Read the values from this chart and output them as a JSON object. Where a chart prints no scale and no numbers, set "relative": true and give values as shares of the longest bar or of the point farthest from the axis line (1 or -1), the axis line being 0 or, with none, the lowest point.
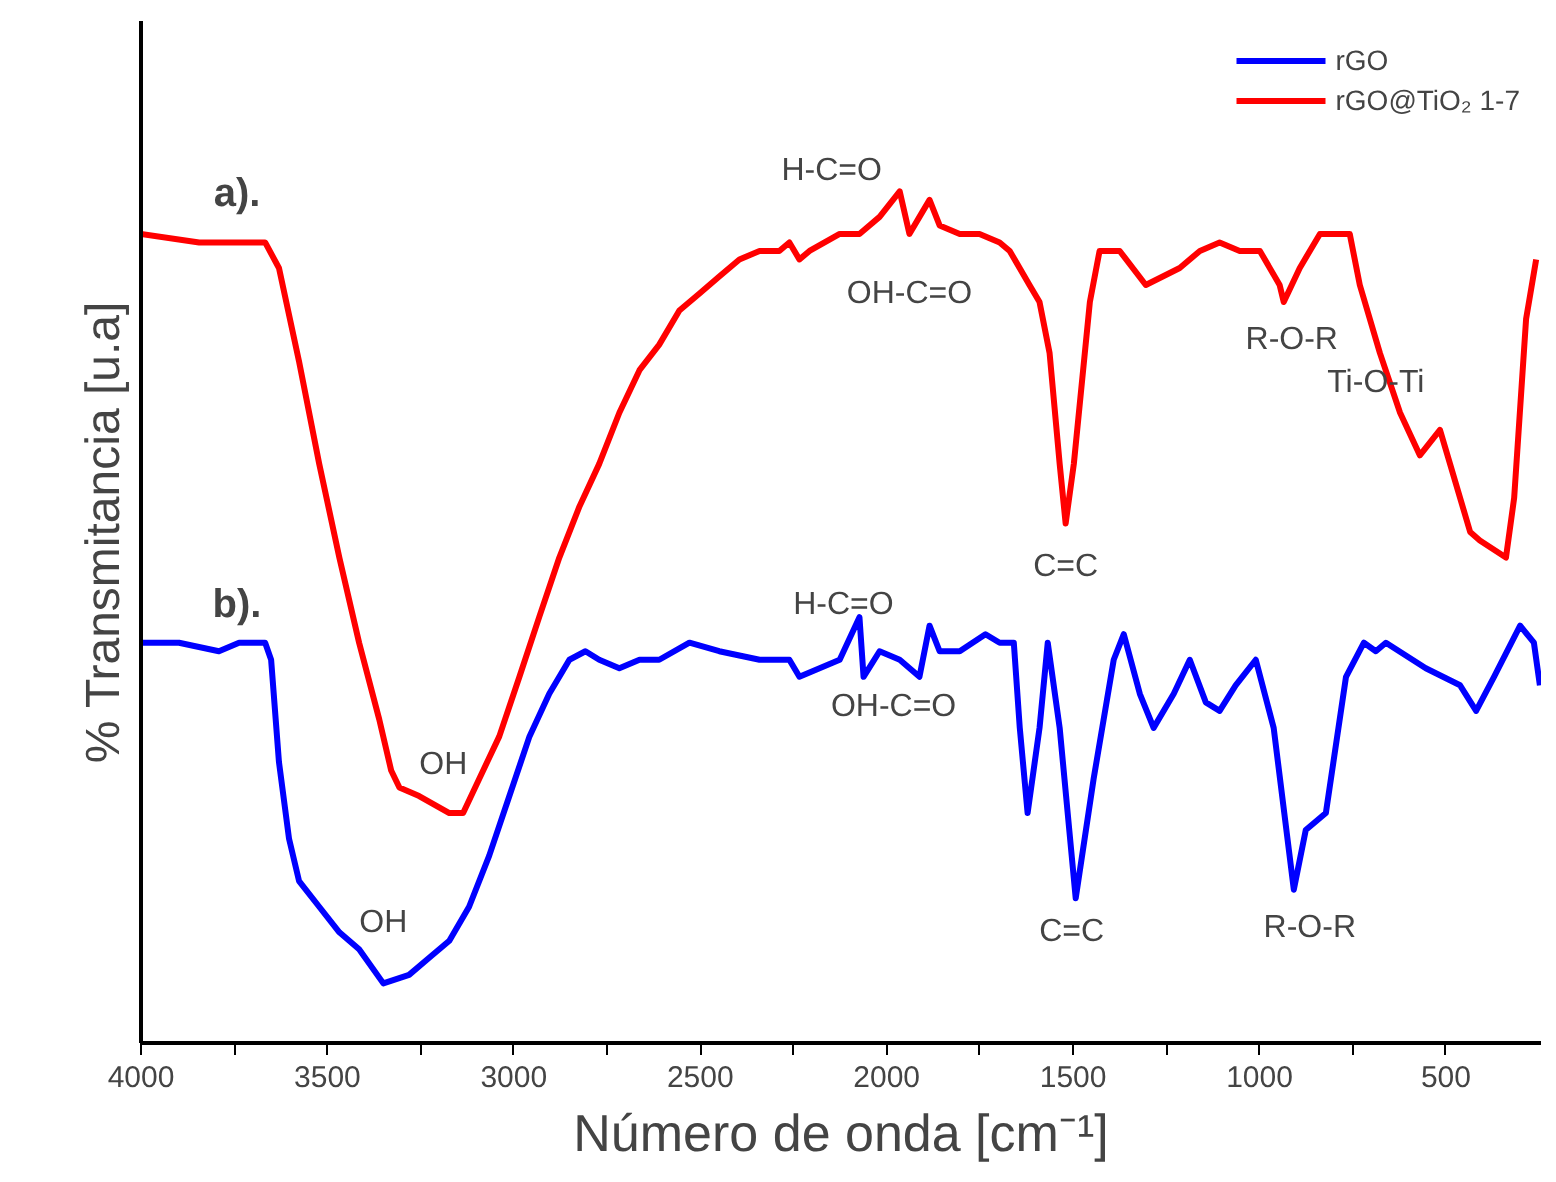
{
  "chart_data": {
    "type": "line",
    "xlabel": "Número de onda [cm⁻¹]",
    "ylabel": "% Transmitancia [u.a]",
    "relative": true,
    "grid": false,
    "legend": "top right",
    "marker": "none",
    "line_style": "solid",
    "xlim": [
      4000,
      245
    ],
    "xticks": [
      4000,
      {
        "value": 3750,
        "label": null
      },
      3500,
      {
        "value": 3250,
        "label": null
      },
      3000,
      {
        "value": 2750,
        "label": null
      },
      2500,
      {
        "value": 2250,
        "label": null
      },
      2000,
      {
        "value": 1750,
        "label": null
      },
      1500,
      {
        "value": 1250,
        "label": null
      },
      1000,
      {
        "value": 750,
        "label": null
      },
      500
    ],
    "series": [
      {
        "name": "rGO",
        "color": "#0000ff",
        "x": [
          4000,
          3898,
          3791,
          3737,
          3667,
          3651,
          3630,
          3603,
          3576,
          3522,
          3468,
          3415,
          3350,
          3281,
          3227,
          3173,
          3120,
          3066,
          3012,
          2958,
          2905,
          2851,
          2808,
          2771,
          2717,
          2663,
          2610,
          2529,
          2449,
          2341,
          2261,
          2234,
          2180,
          2126,
          2073,
          2062,
          2019,
          1965,
          1912,
          1885,
          1858,
          1804,
          1735,
          1697,
          1659,
          1643,
          1622,
          1590,
          1568,
          1536,
          1493,
          1445,
          1391,
          1364,
          1321,
          1284,
          1230,
          1187,
          1144,
          1107,
          1064,
          1010,
          962,
          908,
          876,
          822,
          768,
          720,
          688,
          661,
          554,
          462,
          419,
          371,
          301,
          264,
          248
        ],
        "values": [
          0.47,
          0.47,
          0.46,
          0.47,
          0.47,
          0.45,
          0.33,
          0.24,
          0.19,
          0.16,
          0.13,
          0.11,
          0.07,
          0.08,
          0.1,
          0.12,
          0.16,
          0.22,
          0.29,
          0.36,
          0.41,
          0.45,
          0.46,
          0.45,
          0.44,
          0.45,
          0.45,
          0.47,
          0.46,
          0.45,
          0.45,
          0.43,
          0.44,
          0.45,
          0.5,
          0.43,
          0.46,
          0.45,
          0.43,
          0.49,
          0.46,
          0.46,
          0.48,
          0.47,
          0.47,
          0.37,
          0.27,
          0.37,
          0.47,
          0.37,
          0.17,
          0.31,
          0.45,
          0.48,
          0.41,
          0.37,
          0.41,
          0.45,
          0.4,
          0.39,
          0.42,
          0.45,
          0.37,
          0.18,
          0.25,
          0.27,
          0.43,
          0.47,
          0.46,
          0.47,
          0.44,
          0.42,
          0.39,
          0.43,
          0.49,
          0.47,
          0.42
        ]
      },
      {
        "name": "rGO@TiO₂ 1-7",
        "color": "#ff0000",
        "x": [
          4000,
          3844,
          3737,
          3667,
          3630,
          3576,
          3522,
          3468,
          3415,
          3361,
          3329,
          3307,
          3254,
          3173,
          3136,
          3093,
          3039,
          2985,
          2932,
          2878,
          2824,
          2771,
          2717,
          2663,
          2610,
          2556,
          2502,
          2449,
          2395,
          2341,
          2288,
          2261,
          2234,
          2207,
          2126,
          2073,
          2019,
          1965,
          1939,
          1912,
          1885,
          1858,
          1804,
          1751,
          1697,
          1670,
          1617,
          1590,
          1563,
          1536,
          1520,
          1498,
          1455,
          1429,
          1375,
          1305,
          1214,
          1160,
          1107,
          1053,
          999,
          946,
          935,
          892,
          838,
          785,
          758,
          731,
          677,
          623,
          570,
          516,
          489,
          435,
          409,
          339,
          317,
          285,
          258
        ],
        "values": [
          0.95,
          0.94,
          0.94,
          0.94,
          0.91,
          0.8,
          0.68,
          0.57,
          0.47,
          0.38,
          0.32,
          0.3,
          0.29,
          0.27,
          0.27,
          0.31,
          0.36,
          0.43,
          0.5,
          0.57,
          0.63,
          0.68,
          0.74,
          0.79,
          0.82,
          0.86,
          0.88,
          0.9,
          0.92,
          0.93,
          0.93,
          0.94,
          0.92,
          0.93,
          0.95,
          0.95,
          0.97,
          1.0,
          0.95,
          0.97,
          0.99,
          0.96,
          0.95,
          0.95,
          0.94,
          0.93,
          0.89,
          0.87,
          0.81,
          0.68,
          0.61,
          0.68,
          0.87,
          0.93,
          0.93,
          0.89,
          0.91,
          0.93,
          0.94,
          0.93,
          0.93,
          0.89,
          0.87,
          0.91,
          0.95,
          0.95,
          0.95,
          0.89,
          0.81,
          0.74,
          0.69,
          0.72,
          0.68,
          0.6,
          0.59,
          0.57,
          0.64,
          0.85,
          0.92
        ]
      }
    ],
    "annotations": [
      {
        "text": "a).",
        "x": 4000,
        "y": 0.95
      },
      {
        "text": "b).",
        "x": 4000,
        "y": 0.47
      },
      {
        "text": "OH",
        "x": 3173,
        "y": 0.27
      },
      {
        "text": "OH",
        "x": 3350,
        "y": 0.07
      },
      {
        "text": "H-C=O",
        "x": 1965,
        "y": 1.0
      },
      {
        "text": "OH-C=O",
        "x": 1939,
        "y": 0.95
      },
      {
        "text": "C=C",
        "x": 1520,
        "y": 0.61
      },
      {
        "text": "R-O-R",
        "x": 935,
        "y": 0.87
      },
      {
        "text": "Ti-O-Ti",
        "x": 570,
        "y": 0.69
      },
      {
        "text": "H-C=O",
        "x": 2073,
        "y": 0.5
      },
      {
        "text": "OH-C=O",
        "x": 2062,
        "y": 0.43
      },
      {
        "text": "C=C",
        "x": 1493,
        "y": 0.17
      },
      {
        "text": "R-O-R",
        "x": 908,
        "y": 0.18
      }
    ]
  }
}
